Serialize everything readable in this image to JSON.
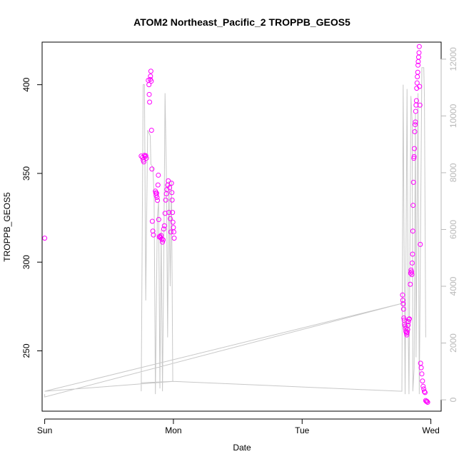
{
  "chart_data": {
    "type": "scatter",
    "title": "ATOM2 Northeast_Pacific_2 TROPPB_GEOS5",
    "xlabel": "Date",
    "ylabel": "TROPPB_GEOS5",
    "x_unit": "days since Sun 00:00",
    "xlim": [
      -0.02,
      3.08
    ],
    "ylim": [
      216,
      424
    ],
    "x_ticks": [
      {
        "value": 0,
        "label": "Sun"
      },
      {
        "value": 1,
        "label": "Mon"
      },
      {
        "value": 2,
        "label": "Tue"
      },
      {
        "value": 3,
        "label": "Wed"
      }
    ],
    "y_ticks": [
      250,
      300,
      350,
      400
    ],
    "y2_ticks": [
      0,
      2000,
      4000,
      6000,
      8000,
      10000,
      12000
    ],
    "y2lim": [
      -400,
      12600
    ],
    "grid": false,
    "colors": {
      "points": "#ff00ff",
      "line": "#c8c8c8",
      "axis": "#000000",
      "right_axis": "#b8b8b8"
    },
    "series": [
      {
        "kind": "points",
        "marker": "open-circle",
        "points": [
          [
            0.0,
            313.5
          ],
          [
            0.75,
            359.8
          ],
          [
            0.76,
            359.0
          ],
          [
            0.765,
            357.5
          ],
          [
            0.77,
            356.5
          ],
          [
            0.775,
            360.2
          ],
          [
            0.78,
            359.5
          ],
          [
            0.785,
            360.0
          ],
          [
            0.79,
            358.6
          ],
          [
            0.805,
            402.5
          ],
          [
            0.81,
            400.0
          ],
          [
            0.812,
            394.5
          ],
          [
            0.815,
            390.2
          ],
          [
            0.82,
            403.0
          ],
          [
            0.822,
            404.8
          ],
          [
            0.825,
            407.6
          ],
          [
            0.828,
            402.0
          ],
          [
            0.83,
            374.3
          ],
          [
            0.833,
            352.5
          ],
          [
            0.836,
            323.0
          ],
          [
            0.84,
            317.5
          ],
          [
            0.845,
            315.3
          ],
          [
            0.86,
            340.0
          ],
          [
            0.863,
            339.0
          ],
          [
            0.866,
            337.7
          ],
          [
            0.87,
            338.8
          ],
          [
            0.873,
            336.5
          ],
          [
            0.876,
            334.8
          ],
          [
            0.88,
            343.5
          ],
          [
            0.883,
            349.0
          ],
          [
            0.886,
            324.0
          ],
          [
            0.89,
            314.2
          ],
          [
            0.895,
            314.6
          ],
          [
            0.9,
            313.8
          ],
          [
            0.905,
            315.0
          ],
          [
            0.91,
            313.0
          ],
          [
            0.915,
            311.3
          ],
          [
            0.92,
            312.5
          ],
          [
            0.925,
            318.7
          ],
          [
            0.93,
            320.5
          ],
          [
            0.935,
            327.5
          ],
          [
            0.94,
            335.0
          ],
          [
            0.945,
            338.5
          ],
          [
            0.95,
            341.0
          ],
          [
            0.955,
            343.4
          ],
          [
            0.96,
            345.8
          ],
          [
            0.965,
            328.0
          ],
          [
            0.97,
            342.0
          ],
          [
            0.975,
            324.5
          ],
          [
            0.98,
            317.0
          ],
          [
            0.985,
            344.5
          ],
          [
            0.988,
            339.2
          ],
          [
            0.99,
            335.0
          ],
          [
            0.993,
            328.0
          ],
          [
            0.996,
            322.5
          ],
          [
            1.0,
            319.5
          ],
          [
            1.003,
            317.0
          ],
          [
            1.006,
            313.5
          ],
          [
            2.78,
            281.5
          ],
          [
            2.782,
            278.5
          ],
          [
            2.785,
            276.5
          ],
          [
            2.788,
            273.5
          ],
          [
            2.79,
            268.5
          ],
          [
            2.793,
            267.3
          ],
          [
            2.796,
            265.0
          ],
          [
            2.8,
            264.0
          ],
          [
            2.803,
            262.5
          ],
          [
            2.806,
            261.0
          ],
          [
            2.81,
            260.0
          ],
          [
            2.813,
            259.0
          ],
          [
            2.816,
            260.5
          ],
          [
            2.82,
            262.0
          ],
          [
            2.823,
            264.5
          ],
          [
            2.826,
            266.5
          ],
          [
            2.83,
            267.8
          ],
          [
            2.833,
            268.0
          ],
          [
            2.84,
            287.5
          ],
          [
            2.843,
            293.8
          ],
          [
            2.846,
            295.5
          ],
          [
            2.85,
            294.5
          ],
          [
            2.852,
            293.0
          ],
          [
            2.855,
            299.5
          ],
          [
            2.858,
            304.5
          ],
          [
            2.86,
            317.5
          ],
          [
            2.862,
            332.0
          ],
          [
            2.865,
            345.0
          ],
          [
            2.868,
            358.5
          ],
          [
            2.87,
            359.5
          ],
          [
            2.872,
            364.0
          ],
          [
            2.875,
            373.5
          ],
          [
            2.878,
            377.5
          ],
          [
            2.88,
            379.0
          ],
          [
            2.882,
            385.0
          ],
          [
            2.885,
            388.5
          ],
          [
            2.888,
            391.0
          ],
          [
            2.89,
            398.0
          ],
          [
            2.893,
            401.0
          ],
          [
            2.895,
            404.5
          ],
          [
            2.898,
            407.0
          ],
          [
            2.9,
            411.0
          ],
          [
            2.902,
            413.0
          ],
          [
            2.905,
            415.5
          ],
          [
            2.908,
            418.0
          ],
          [
            2.91,
            421.5
          ],
          [
            2.912,
            399.0
          ],
          [
            2.915,
            388.5
          ],
          [
            2.918,
            310.0
          ],
          [
            2.92,
            243.0
          ],
          [
            2.925,
            240.5
          ],
          [
            2.93,
            237.0
          ],
          [
            2.935,
            233.0
          ],
          [
            2.94,
            230.0
          ],
          [
            2.945,
            228.5
          ],
          [
            2.95,
            227.0
          ],
          [
            2.955,
            226.5
          ],
          [
            2.96,
            222.0
          ],
          [
            2.965,
            221.5
          ],
          [
            2.97,
            221.5
          ],
          [
            2.975,
            221.0
          ]
        ]
      },
      {
        "kind": "line",
        "axis": "right",
        "points": [
          [
            0.0,
            200
          ],
          [
            0.0,
            100
          ],
          [
            2.78,
            3400
          ],
          [
            0.0,
            300
          ],
          [
            1.0,
            650
          ],
          [
            0.75,
            600
          ],
          [
            0.75,
            300
          ],
          [
            0.765,
            11100
          ],
          [
            0.775,
            11100
          ],
          [
            0.785,
            3500
          ],
          [
            0.8,
            9500
          ],
          [
            0.82,
            9300
          ],
          [
            0.825,
            8300
          ],
          [
            0.84,
            8200
          ],
          [
            0.85,
            7200
          ],
          [
            0.86,
            200
          ],
          [
            0.875,
            6400
          ],
          [
            0.885,
            7000
          ],
          [
            0.895,
            400
          ],
          [
            0.905,
            6000
          ],
          [
            0.915,
            300
          ],
          [
            0.925,
            4800
          ],
          [
            0.935,
            10800
          ],
          [
            0.945,
            8000
          ],
          [
            0.955,
            2200
          ],
          [
            0.965,
            7700
          ],
          [
            0.975,
            4000
          ],
          [
            0.985,
            7700
          ],
          [
            0.995,
            650
          ],
          [
            2.775,
            300
          ],
          [
            2.785,
            11100
          ],
          [
            2.79,
            6800
          ],
          [
            2.8,
            200
          ],
          [
            2.815,
            10950
          ],
          [
            2.825,
            2200
          ],
          [
            2.83,
            200
          ],
          [
            2.845,
            10700
          ],
          [
            2.855,
            9800
          ],
          [
            2.86,
            300
          ],
          [
            2.87,
            1100
          ],
          [
            2.88,
            10100
          ],
          [
            2.885,
            1500
          ],
          [
            2.9,
            10800
          ],
          [
            2.91,
            200
          ],
          [
            2.93,
            11700
          ],
          [
            2.945,
            11700
          ],
          [
            2.95,
            10700
          ],
          [
            2.96,
            2200
          ]
        ]
      }
    ]
  }
}
